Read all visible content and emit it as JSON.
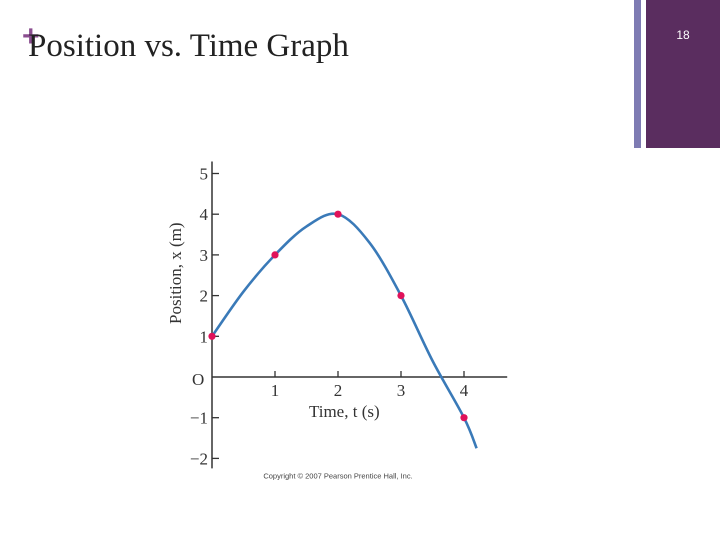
{
  "slide": {
    "title": "Position vs. Time Graph",
    "plus_glyph": "+",
    "number": "18",
    "colors": {
      "accent_dark": "#5a2d5f",
      "accent_light": "#7e7bb3",
      "plus": "#8a4d8f",
      "curve": "#3a7ab8",
      "point": "#e0125a"
    }
  },
  "chart_data": {
    "type": "line",
    "xlabel": "Time, t (s)",
    "ylabel": "Position, x (m)",
    "origin_label": "O",
    "xlim": [
      0,
      4.4
    ],
    "ylim": [
      -2,
      5
    ],
    "x_ticks": [
      {
        "value": 1,
        "label": "1"
      },
      {
        "value": 2,
        "label": "2"
      },
      {
        "value": 3,
        "label": "3"
      },
      {
        "value": 4,
        "label": "4"
      }
    ],
    "y_ticks": [
      {
        "value": 5,
        "label": "5"
      },
      {
        "value": 4,
        "label": "4"
      },
      {
        "value": 3,
        "label": "3"
      },
      {
        "value": 2,
        "label": "2"
      },
      {
        "value": 1,
        "label": "1"
      },
      {
        "value": -1,
        "label": "−1"
      },
      {
        "value": -2,
        "label": "−2"
      }
    ],
    "series": [
      {
        "curve": [
          [
            0,
            1
          ],
          [
            0.5,
            2.1
          ],
          [
            1,
            3
          ],
          [
            1.5,
            3.7
          ],
          [
            2,
            4
          ],
          [
            2.5,
            3.3
          ],
          [
            3,
            2
          ],
          [
            3.5,
            0.4
          ],
          [
            4,
            -1
          ],
          [
            4.2,
            -1.75
          ]
        ],
        "points": [
          [
            0,
            1
          ],
          [
            1,
            3
          ],
          [
            2,
            4
          ],
          [
            3,
            2
          ],
          [
            4,
            -1
          ]
        ]
      }
    ],
    "grid": false,
    "copyright": "Copyright © 2007 Pearson Prentice Hall, Inc."
  }
}
